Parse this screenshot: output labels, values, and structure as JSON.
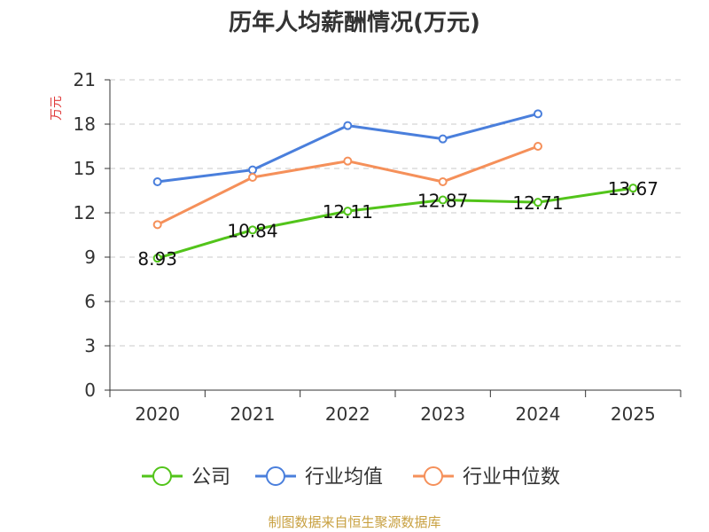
{
  "chart_data": {
    "type": "line",
    "title": "历年人均薪酬情况(万元)",
    "ylabel": "万元",
    "xlabel": "",
    "categories": [
      "2020",
      "2021",
      "2022",
      "2023",
      "2024",
      "2025"
    ],
    "ylim": [
      0,
      21
    ],
    "yticks": [
      0,
      3,
      6,
      9,
      12,
      15,
      18,
      21
    ],
    "grid": true,
    "legend_position": "bottom",
    "series": [
      {
        "name": "公司",
        "color": "#52c41a",
        "values": [
          8.93,
          10.84,
          12.11,
          12.87,
          12.71,
          13.67
        ],
        "labels": [
          "8.93",
          "10.84",
          "12.11",
          "12.87",
          "12.71",
          "13.67"
        ]
      },
      {
        "name": "行业均值",
        "color": "#4a7fdc",
        "values": [
          14.1,
          14.9,
          17.9,
          17.0,
          18.7,
          null
        ]
      },
      {
        "name": "行业中位数",
        "color": "#f5905a",
        "values": [
          11.2,
          14.4,
          15.5,
          14.1,
          16.5,
          null
        ]
      }
    ],
    "source": "制图数据来自恒生聚源数据库"
  }
}
